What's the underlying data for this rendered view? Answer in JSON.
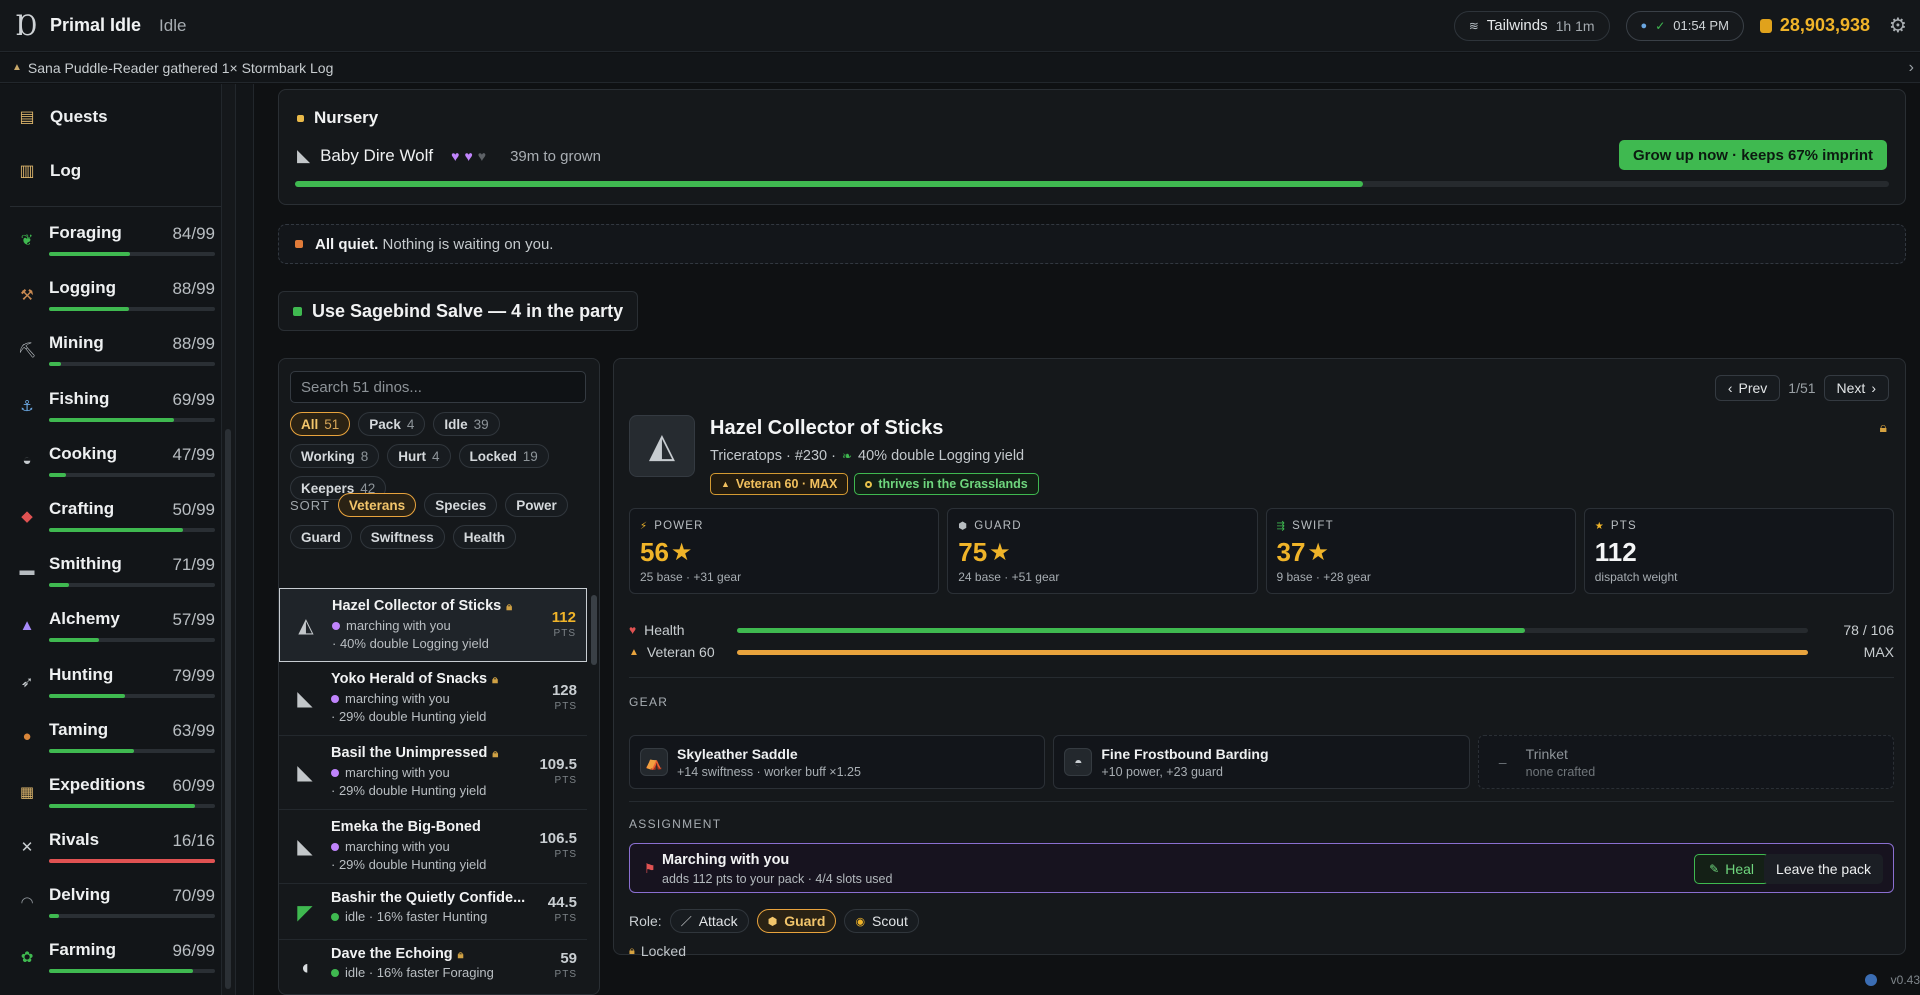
{
  "app": {
    "title": "Primal Idle",
    "status": "Idle",
    "weather_label": "Tailwinds",
    "weather_time": "1h 1m",
    "clock": "01:54 PM",
    "gold": "28,903,938",
    "version": "v0.43"
  },
  "ticker": {
    "message": "Sana Puddle-Reader gathered 1× Stormbark Log"
  },
  "sidebar": {
    "nav": [
      {
        "label": "Quests",
        "icon": "clipboard-icon"
      },
      {
        "label": "Log",
        "icon": "scroll-icon"
      }
    ],
    "skills": [
      {
        "name": "Foraging",
        "level": "84/99",
        "progress": 0.49,
        "icon": "leaf-icon",
        "color": "#3fb950"
      },
      {
        "name": "Logging",
        "level": "88/99",
        "progress": 0.48,
        "icon": "axe-icon",
        "color": "#3fb950"
      },
      {
        "name": "Mining",
        "level": "88/99",
        "progress": 0.07,
        "icon": "pickaxe-icon",
        "color": "#3fb950"
      },
      {
        "name": "Fishing",
        "level": "69/99",
        "progress": 0.75,
        "icon": "fishing-rod-icon",
        "color": "#3fb950"
      },
      {
        "name": "Cooking",
        "level": "47/99",
        "progress": 0.1,
        "icon": "pot-icon",
        "color": "#3fb950"
      },
      {
        "name": "Crafting",
        "level": "50/99",
        "progress": 0.81,
        "icon": "hammer-icon",
        "color": "#3fb950"
      },
      {
        "name": "Smithing",
        "level": "71/99",
        "progress": 0.12,
        "icon": "anvil-icon",
        "color": "#3fb950"
      },
      {
        "name": "Alchemy",
        "level": "57/99",
        "progress": 0.3,
        "icon": "flask-icon",
        "color": "#3fb950"
      },
      {
        "name": "Hunting",
        "level": "79/99",
        "progress": 0.46,
        "icon": "bow-icon",
        "color": "#3fb950"
      },
      {
        "name": "Taming",
        "level": "63/99",
        "progress": 0.51,
        "icon": "paw-icon",
        "color": "#3fb950"
      },
      {
        "name": "Expeditions",
        "level": "60/99",
        "progress": 0.88,
        "icon": "map-icon",
        "color": "#3fb950"
      },
      {
        "name": "Rivals",
        "level": "16/16",
        "progress": 1.0,
        "icon": "swords-icon",
        "color": "#e05252"
      },
      {
        "name": "Delving",
        "level": "70/99",
        "progress": 0.06,
        "icon": "cave-icon",
        "color": "#3fb950"
      },
      {
        "name": "Farming",
        "level": "96/99",
        "progress": 0.87,
        "icon": "sprout-icon",
        "color": "#3fb950"
      }
    ]
  },
  "nursery": {
    "title": "Nursery",
    "baby_name": "Baby Dire Wolf",
    "hearts_filled": 2,
    "hearts_total": 3,
    "eta": "39m to grown",
    "grow_button": "Grow up now · keeps 67% imprint",
    "progress": 0.67
  },
  "notice": {
    "bold": "All quiet.",
    "text": "Nothing is waiting on you."
  },
  "salve_button": "Use Sagebind Salve — 4 in the party",
  "list": {
    "search_placeholder": "Search 51 dinos...",
    "filters": [
      {
        "label": "All",
        "count": "51",
        "active": true
      },
      {
        "label": "Pack",
        "count": "4",
        "active": false
      },
      {
        "label": "Idle",
        "count": "39",
        "active": false
      },
      {
        "label": "Working",
        "count": "8",
        "active": false
      },
      {
        "label": "Hurt",
        "count": "4",
        "active": false
      },
      {
        "label": "Locked",
        "count": "19",
        "active": false
      },
      {
        "label": "Keepers",
        "count": "42",
        "active": false
      }
    ],
    "sort_label": "SORT",
    "sorts": [
      {
        "label": "Veterans",
        "active": true
      },
      {
        "label": "Species",
        "active": false
      },
      {
        "label": "Power",
        "active": false
      },
      {
        "label": "Guard",
        "active": false
      },
      {
        "label": "Swiftness",
        "active": false
      },
      {
        "label": "Health",
        "active": false
      }
    ],
    "pts_unit": "PTS",
    "rows": [
      {
        "name": "Hazel Collector of Sticks",
        "locked": true,
        "status": "marching with you",
        "status_color": "purple",
        "bonus": "· 40% double Logging yield",
        "pts": "112",
        "icon": "triceratops-icon",
        "selected": true
      },
      {
        "name": "Yoko Herald of Snacks",
        "locked": true,
        "status": "marching with you",
        "status_color": "purple",
        "bonus": "· 29% double Hunting yield",
        "pts": "128",
        "icon": "wolf-icon",
        "selected": false
      },
      {
        "name": "Basil the Unimpressed",
        "locked": true,
        "status": "marching with you",
        "status_color": "purple",
        "bonus": "· 29% double Hunting yield",
        "pts": "109.5",
        "icon": "wolf-icon",
        "selected": false
      },
      {
        "name": "Emeka the Big-Boned",
        "locked": false,
        "status": "marching with you",
        "status_color": "purple",
        "bonus": "· 29% double Hunting yield",
        "pts": "106.5",
        "icon": "wolf-icon",
        "selected": false
      },
      {
        "name": "Bashir the Quietly Confide...",
        "locked": false,
        "status": "idle · 16% faster Hunting",
        "status_color": "green",
        "bonus": "",
        "pts": "44.5",
        "icon": "raptor-icon",
        "selected": false
      },
      {
        "name": "Dave the Echoing",
        "locked": true,
        "status": "idle · 16% faster Foraging",
        "status_color": "green",
        "bonus": "",
        "pts": "59",
        "icon": "dodo-icon",
        "selected": false
      }
    ]
  },
  "detail": {
    "prev": "Prev",
    "next": "Next",
    "position": "1/51",
    "name": "Hazel Collector of Sticks",
    "species_line": "Triceratops · #230 ·",
    "bonus": "40% double Logging yield",
    "tag_veteran": "Veteran 60 · MAX",
    "tag_biome": "thrives in the Grasslands",
    "stats": [
      {
        "label": "POWER",
        "value": "56",
        "star": true,
        "sub": "25 base · +31 gear",
        "icon": "bolt-icon"
      },
      {
        "label": "GUARD",
        "value": "75",
        "star": true,
        "sub": "24 base · +51 gear",
        "icon": "shield-icon"
      },
      {
        "label": "SWIFT",
        "value": "37",
        "star": true,
        "sub": "9 base · +28 gear",
        "icon": "wing-icon"
      },
      {
        "label": "PTS",
        "value": "112",
        "star": false,
        "sub": "dispatch weight",
        "icon": "star-icon"
      }
    ],
    "health_label": "Health",
    "health_value": "78 / 106",
    "health_fraction": 0.736,
    "veteran_label": "Veteran 60",
    "veteran_value": "MAX",
    "veteran_fraction": 1.0,
    "gear_title": "GEAR",
    "gear": [
      {
        "name": "Skyleather Saddle",
        "desc": "+14 swiftness · worker buff ×1.25",
        "icon": "saddle-icon",
        "empty": false
      },
      {
        "name": "Fine Frostbound Barding",
        "desc": "+10 power, +23 guard",
        "icon": "armor-icon",
        "empty": false
      },
      {
        "name": "Trinket",
        "desc": "none crafted",
        "icon": "empty-slot-icon",
        "empty": true
      }
    ],
    "assignment_title": "ASSIGNMENT",
    "assignment_name": "Marching with you",
    "assignment_desc": "adds 112 pts to your pack · 4/4 slots used",
    "heal_button": "Heal",
    "leave_button": "Leave the pack",
    "role_label": "Role:",
    "roles": [
      {
        "label": "Attack",
        "active": false,
        "icon": "sword-icon"
      },
      {
        "label": "Guard",
        "active": true,
        "icon": "shield-icon"
      },
      {
        "label": "Scout",
        "active": false,
        "icon": "eye-icon"
      }
    ],
    "locked_label": "Locked"
  },
  "colors": {
    "accent_green": "#3fb950",
    "accent_gold": "#f0b429",
    "accent_purple": "#c084fc",
    "danger_red": "#e05252"
  }
}
